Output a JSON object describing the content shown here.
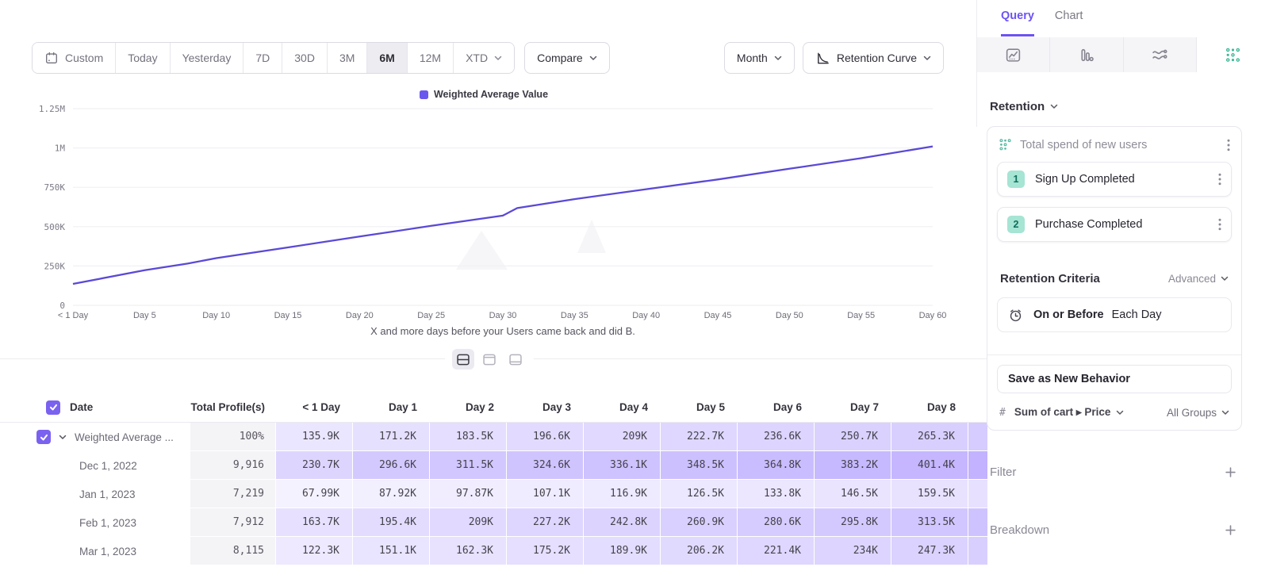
{
  "toolbar": {
    "date_ranges": [
      "Custom",
      "Today",
      "Yesterday",
      "7D",
      "30D",
      "3M",
      "6M",
      "12M",
      "XTD"
    ],
    "active_range": "6M",
    "chevron_range": "XTD",
    "compare_label": "Compare",
    "granularity": "Month",
    "chart_type": "Retention Curve"
  },
  "legend": {
    "label": "Weighted Average Value",
    "color": "#6a58ee"
  },
  "chart_data": {
    "type": "line",
    "title": "",
    "xlabel": "X and more days before your Users came back and did B.",
    "ylabel": "",
    "ylim_k": [
      0,
      1250
    ],
    "grid": "horizontal",
    "legend_position": "top-center",
    "y_ticks": [
      "1.25M",
      "1M",
      "750K",
      "500K",
      "250K",
      "0"
    ],
    "y_tick_values_k": [
      1250,
      1000,
      750,
      500,
      250,
      0
    ],
    "x_ticks": [
      {
        "label": "< 1 Day",
        "day": 0
      },
      {
        "label": "Day 5",
        "day": 5
      },
      {
        "label": "Day 10",
        "day": 10
      },
      {
        "label": "Day 15",
        "day": 15
      },
      {
        "label": "Day 20",
        "day": 20
      },
      {
        "label": "Day 25",
        "day": 25
      },
      {
        "label": "Day 30",
        "day": 30
      },
      {
        "label": "Day 35",
        "day": 35
      },
      {
        "label": "Day 40",
        "day": 40
      },
      {
        "label": "Day 45",
        "day": 45
      },
      {
        "label": "Day 50",
        "day": 50
      },
      {
        "label": "Day 55",
        "day": 55
      },
      {
        "label": "Day 60",
        "day": 60
      }
    ],
    "series": [
      {
        "name": "Weighted Average Value",
        "x_days": [
          0,
          5,
          8,
          10,
          15,
          20,
          25,
          30,
          31,
          35,
          40,
          45,
          50,
          55,
          60
        ],
        "values_k": [
          136,
          223,
          265,
          300,
          368,
          437,
          505,
          570,
          618,
          675,
          738,
          800,
          868,
          935,
          1010
        ]
      }
    ]
  },
  "view_toggles": [
    {
      "name": "split-view",
      "active": true
    },
    {
      "name": "chart-view",
      "active": false
    },
    {
      "name": "table-view",
      "active": false
    }
  ],
  "table": {
    "columns": [
      "Date",
      "Total Profile(s)",
      "< 1 Day",
      "Day 1",
      "Day 2",
      "Day 3",
      "Day 4",
      "Day 5",
      "Day 6",
      "Day 7",
      "Day 8"
    ],
    "rows": [
      {
        "date": "Weighted Average ...",
        "checked": true,
        "expandable": true,
        "total": "100%",
        "values": [
          "135.9K",
          "171.2K",
          "183.5K",
          "196.6K",
          "209K",
          "222.7K",
          "236.6K",
          "250.7K",
          "265.3K"
        ],
        "values_k": [
          135.9,
          171.2,
          183.5,
          196.6,
          209,
          222.7,
          236.6,
          250.7,
          265.3
        ]
      },
      {
        "date": "Dec 1, 2022",
        "checked": false,
        "expandable": false,
        "total": "9,916",
        "values": [
          "230.7K",
          "296.6K",
          "311.5K",
          "324.6K",
          "336.1K",
          "348.5K",
          "364.8K",
          "383.2K",
          "401.4K"
        ],
        "values_k": [
          230.7,
          296.6,
          311.5,
          324.6,
          336.1,
          348.5,
          364.8,
          383.2,
          401.4
        ]
      },
      {
        "date": "Jan 1, 2023",
        "checked": false,
        "expandable": false,
        "total": "7,219",
        "values": [
          "67.99K",
          "87.92K",
          "97.87K",
          "107.1K",
          "116.9K",
          "126.5K",
          "133.8K",
          "146.5K",
          "159.5K"
        ],
        "values_k": [
          67.99,
          87.92,
          97.87,
          107.1,
          116.9,
          126.5,
          133.8,
          146.5,
          159.5
        ]
      },
      {
        "date": "Feb 1, 2023",
        "checked": false,
        "expandable": false,
        "total": "7,912",
        "values": [
          "163.7K",
          "195.4K",
          "209K",
          "227.2K",
          "242.8K",
          "260.9K",
          "280.6K",
          "295.8K",
          "313.5K"
        ],
        "values_k": [
          163.7,
          195.4,
          209,
          227.2,
          242.8,
          260.9,
          280.6,
          295.8,
          313.5
        ]
      },
      {
        "date": "Mar 1, 2023",
        "checked": false,
        "expandable": false,
        "total": "8,115",
        "values": [
          "122.3K",
          "151.1K",
          "162.3K",
          "175.2K",
          "189.9K",
          "206.2K",
          "221.4K",
          "234K",
          "247.3K"
        ],
        "values_k": [
          122.3,
          151.1,
          162.3,
          175.2,
          189.9,
          206.2,
          221.4,
          234,
          247.3
        ]
      }
    ]
  },
  "sidebar": {
    "tabs": [
      {
        "label": "Query",
        "active": true
      },
      {
        "label": "Chart",
        "active": false
      }
    ],
    "chart_types": [
      {
        "name": "insights",
        "active": false
      },
      {
        "name": "funnels",
        "active": false
      },
      {
        "name": "flows",
        "active": false
      },
      {
        "name": "retention",
        "active": true
      }
    ],
    "section_label": "Retention",
    "behavior": {
      "title": "Total spend of new users",
      "steps": [
        {
          "num": "1",
          "label": "Sign Up Completed"
        },
        {
          "num": "2",
          "label": "Purchase Completed"
        }
      ]
    },
    "criteria": {
      "label": "Retention Criteria",
      "mode": "Advanced",
      "condition": "On or Before",
      "window": "Each Day"
    },
    "save_button": "Save as New Behavior",
    "measurement": {
      "prefix": "#",
      "label": "Sum of cart ▸ Price",
      "groups": "All Groups"
    },
    "filter_label": "Filter",
    "breakdown_label": "Breakdown"
  },
  "colors": {
    "accent": "#7856ff",
    "line": "#5a49d6",
    "checkbox": "#7b61f0",
    "teal": "#3cb795",
    "badge_bg": "#a6e4d3",
    "badge_text": "#0d6e5b"
  }
}
